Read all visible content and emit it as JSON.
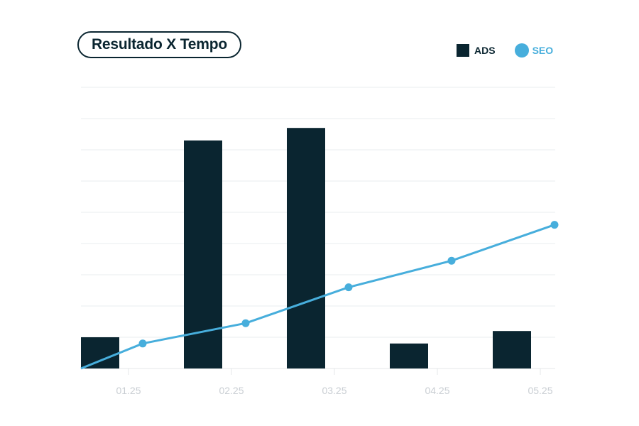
{
  "chart_data": {
    "type": "bar",
    "title": "Resultado X Tempo",
    "categories": [
      "01.25",
      "02.25",
      "03.25",
      "04.25",
      "05.25"
    ],
    "series": [
      {
        "name": "ADS",
        "type": "bar",
        "color": "#0a2530",
        "values": [
          10,
          73,
          77,
          8,
          12
        ]
      },
      {
        "name": "SEO",
        "type": "line",
        "color": "#47aedc",
        "points": [
          [
            0,
            0
          ],
          [
            0.6,
            8
          ],
          [
            1.6,
            14.5
          ],
          [
            2.6,
            26
          ],
          [
            3.6,
            34.5
          ],
          [
            4.6,
            46
          ]
        ]
      }
    ],
    "ylim": [
      0,
      90
    ],
    "grid": true,
    "legend": "top-right"
  }
}
